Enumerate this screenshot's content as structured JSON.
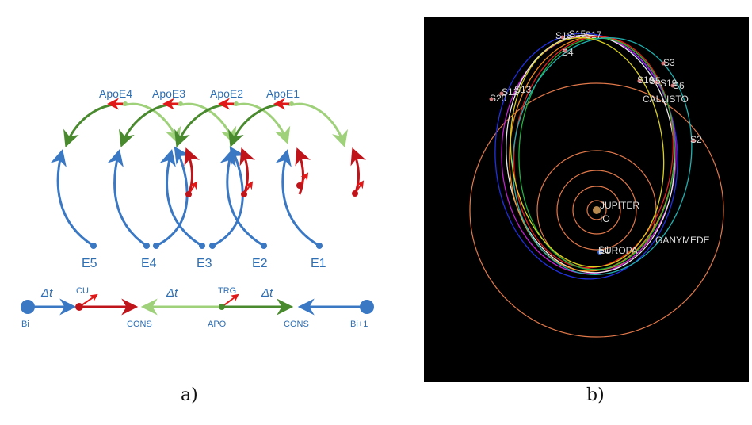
{
  "panel_a": {
    "caption": "a)",
    "apo_labels": [
      "ApoE4",
      "ApoE3",
      "ApoE2",
      "ApoE1"
    ],
    "encounter_labels": [
      "E5",
      "E4",
      "E3",
      "E2",
      "E1"
    ],
    "timeline": {
      "dt1": "Δt",
      "dt2": "Δt",
      "dt3": "Δt",
      "cu": "CU",
      "trg": "TRG",
      "bi": "Bi",
      "bi1": "Bi+1",
      "cons1": "CONS",
      "apo": "APO",
      "cons2": "CONS"
    },
    "colors": {
      "blue": "#3a78c4",
      "red": "#c0141b",
      "dark_green": "#4a8a2e",
      "light_green": "#9fd07a",
      "label": "#2f6fb3"
    }
  },
  "panel_b": {
    "caption": "b)",
    "labels": {
      "s18": "S18",
      "s15": "S15",
      "s17": "S17",
      "s4": "S4",
      "s3": "S3",
      "s16": "S16",
      "s5": "S5",
      "s19": "S19",
      "s6": "S6",
      "callisto": "CALLISTO",
      "s20": "S20",
      "s12": "S12",
      "s13": "S13",
      "s2": "S2",
      "jupiter": "JUPITER",
      "io": "IO",
      "ganymede": "GANYMEDE",
      "europa": "EUROPA",
      "s1": "S1"
    },
    "colors": {
      "moon_orbit": "#e0784a",
      "white": "#e8e8e8",
      "magenta": "#c020d0",
      "orange": "#f08a1a",
      "red": "#e02020",
      "green": "#20b040",
      "cyan": "#20b0b0",
      "blue": "#2030e0",
      "yellow": "#d8d020",
      "label": "#dddddd"
    }
  }
}
